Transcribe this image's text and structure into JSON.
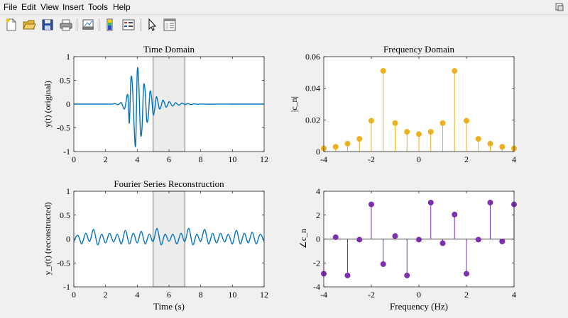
{
  "menu": [
    "File",
    "Edit",
    "View",
    "Insert",
    "Tools",
    "Help"
  ],
  "toolbar_icons": [
    "new-file-icon",
    "open-folder-icon",
    "save-icon",
    "print-icon",
    "link-plot-icon",
    "colorbar-icon",
    "legend-icon",
    "pointer-icon",
    "property-inspector-icon"
  ],
  "colors": {
    "time_line": "#0072bd",
    "magnitude_stem": "#edb120",
    "phase_stem": "#7e2fb0",
    "highlight_fill": "#ececec"
  },
  "chart_data": [
    {
      "type": "line",
      "title": "Time Domain",
      "xlabel": "",
      "ylabel": "y(t) (original)",
      "xlim": [
        0,
        12
      ],
      "ylim": [
        -1,
        1
      ],
      "xticks": [
        "0",
        "2",
        "4",
        "6",
        "8",
        "10",
        "12"
      ],
      "yticks": [
        "-1",
        "-0.5",
        "0",
        "0.5",
        "1"
      ],
      "highlight_x": [
        5,
        7
      ],
      "series": [
        {
          "x": [
            0,
            0.5,
            1,
            1.5,
            2,
            2.4,
            2.6,
            2.8,
            3.0,
            3.2,
            3.4,
            3.5,
            3.6,
            3.7,
            3.8,
            3.9,
            4.0,
            4.1,
            4.2,
            4.3,
            4.4,
            4.5,
            4.6,
            4.7,
            4.8,
            4.9,
            5.0,
            5.1,
            5.2,
            5.3,
            5.4,
            5.5,
            5.6,
            5.7,
            5.8,
            5.9,
            6.0,
            6.1,
            6.2,
            6.3,
            6.4,
            6.5,
            6.6,
            6.7,
            6.8,
            6.9,
            7.0,
            7.2,
            7.4,
            7.6,
            7.8,
            8.0,
            8.5,
            9,
            10,
            11,
            12
          ],
          "y": [
            0,
            0,
            0,
            0,
            0,
            0,
            0.01,
            -0.01,
            0.03,
            -0.1,
            0.2,
            -0.4,
            0.55,
            0.35,
            -0.45,
            -0.85,
            0.7,
            0.4,
            -0.6,
            -0.5,
            0.38,
            0.25,
            -0.35,
            -0.25,
            0.26,
            0.15,
            -0.22,
            -0.1,
            0.15,
            0.05,
            -0.1,
            -0.05,
            0.08,
            0.04,
            -0.06,
            -0.03,
            0.05,
            0.02,
            -0.04,
            -0.02,
            0.03,
            0.01,
            -0.02,
            -0.01,
            0.02,
            0.01,
            -0.01,
            0.01,
            -0.01,
            0.005,
            -0.005,
            0.003,
            -0.002,
            0.001,
            0,
            0,
            0
          ]
        }
      ]
    },
    {
      "type": "stem",
      "title": "Frequency Domain",
      "xlabel": "",
      "ylabel": "|c_n|",
      "xlim": [
        -4,
        4
      ],
      "ylim": [
        0,
        0.06
      ],
      "xticks": [
        "-4",
        "-2",
        "0",
        "2",
        "4"
      ],
      "yticks": [
        "0",
        "0.02",
        "0.04",
        "0.06"
      ],
      "x": [
        -4,
        -3.5,
        -3,
        -2.5,
        -2,
        -1.5,
        -1,
        -0.5,
        0,
        0.5,
        1,
        1.5,
        2,
        2.5,
        3,
        3.5,
        4
      ],
      "y": [
        0.002,
        0.003,
        0.005,
        0.008,
        0.0195,
        0.051,
        0.018,
        0.0125,
        0.011,
        0.0125,
        0.018,
        0.051,
        0.0195,
        0.008,
        0.005,
        0.003,
        0.002
      ]
    },
    {
      "type": "line",
      "title": "Fourier Series Reconstruction",
      "xlabel": "Time (s)",
      "ylabel": "y_r(t) (reconstructed)",
      "xlim": [
        0,
        12
      ],
      "ylim": [
        -1,
        1
      ],
      "xticks": [
        "0",
        "2",
        "4",
        "6",
        "8",
        "10",
        "12"
      ],
      "yticks": [
        "-1",
        "-0.5",
        "0",
        "0.5",
        "1"
      ],
      "highlight_x": [
        5,
        7
      ],
      "series": [
        {
          "x": [
            0,
            0.25,
            0.5,
            0.75,
            1.0,
            1.25,
            1.5,
            1.75,
            2.0,
            2.25,
            2.5,
            2.75,
            3.0,
            3.25,
            3.5,
            3.75,
            4.0,
            4.25,
            4.5,
            4.75,
            5.0,
            5.25,
            5.5,
            5.75,
            6.0,
            6.25,
            6.5,
            6.75,
            7.0,
            7.25,
            7.5,
            7.75,
            8.0,
            8.25,
            8.5,
            8.75,
            9.0,
            9.25,
            9.5,
            9.75,
            10.0,
            10.25,
            10.5,
            10.75,
            11.0,
            11.25,
            11.5,
            11.75,
            12
          ],
          "y": [
            -0.05,
            0.08,
            -0.1,
            0.12,
            -0.05,
            0.2,
            -0.12,
            0.1,
            -0.08,
            0.12,
            -0.06,
            0.1,
            -0.1,
            0.18,
            -0.1,
            0.12,
            -0.08,
            0.16,
            -0.1,
            0.1,
            -0.05,
            0.22,
            -0.12,
            0.1,
            -0.05,
            0.1,
            -0.1,
            0.12,
            -0.05,
            0.22,
            -0.12,
            0.1,
            -0.05,
            0.2,
            -0.1,
            0.12,
            -0.08,
            0.12,
            -0.06,
            0.1,
            -0.1,
            0.18,
            -0.1,
            0.12,
            -0.08,
            0.14,
            -0.1,
            0.1,
            -0.05
          ]
        }
      ]
    },
    {
      "type": "stem",
      "title": "",
      "xlabel": "Frequency (Hz)",
      "ylabel": "∠c_n",
      "xlim": [
        -4,
        4
      ],
      "ylim": [
        -4,
        4
      ],
      "xticks": [
        "-4",
        "-2",
        "0",
        "2",
        "4"
      ],
      "yticks": [
        "-4",
        "-2",
        "0",
        "2",
        "4"
      ],
      "x": [
        -4,
        -3.5,
        -3,
        -2.5,
        -2,
        -1.5,
        -1,
        -0.5,
        0,
        0.5,
        1,
        1.5,
        2,
        2.5,
        3,
        3.5,
        4
      ],
      "y": [
        -2.9,
        0.15,
        -3.05,
        -0.05,
        2.9,
        -2.1,
        0.25,
        -3.05,
        -0.05,
        3.05,
        -0.35,
        2.05,
        -2.9,
        -0.05,
        3.05,
        -0.2,
        2.9
      ]
    }
  ]
}
